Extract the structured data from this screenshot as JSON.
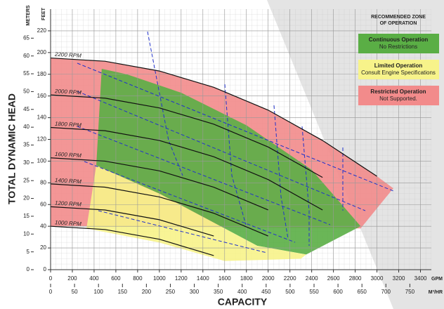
{
  "chart_data": {
    "type": "line",
    "y_label": "TOTAL DYNAMIC HEAD",
    "y_unit": "FEET",
    "y2_unit": "METERS",
    "x_label": "CAPACITY",
    "x_unit": "GPM",
    "x2_unit": "M³/HR",
    "legend_title": [
      "RECOMMENDED ZONE",
      "OF OPERATION"
    ],
    "xlim": [
      0,
      3500
    ],
    "xticks": [
      0,
      200,
      400,
      600,
      800,
      1000,
      1200,
      1400,
      1600,
      1800,
      2000,
      2200,
      2400,
      2600,
      2800,
      3000,
      3200,
      3400
    ],
    "x2lim": [
      0,
      794.9
    ],
    "x2ticks": [
      0,
      50,
      100,
      150,
      200,
      250,
      300,
      350,
      400,
      450,
      500,
      550,
      600,
      650,
      700,
      750
    ],
    "ylim": [
      0,
      240
    ],
    "yticks": [
      0,
      20,
      40,
      60,
      80,
      100,
      120,
      140,
      160,
      180,
      200,
      220
    ],
    "y2lim": [
      0,
      73.15
    ],
    "y2ticks": [
      0,
      5,
      10,
      15,
      20,
      25,
      30,
      35,
      40,
      45,
      50,
      55,
      60,
      65
    ],
    "grid": true,
    "x": [
      0,
      500,
      1000,
      1500,
      2000,
      2500,
      3000
    ],
    "series": [
      {
        "name": "2200 RPM",
        "color": "#111111",
        "values": [
          195,
          192,
          183,
          168,
          147,
          119,
          86
        ]
      },
      {
        "name": "2000 RPM",
        "color": "#111111",
        "values": [
          161,
          158,
          149,
          134,
          113,
          85,
          null
        ]
      },
      {
        "name": "1800 RPM",
        "color": "#111111",
        "values": [
          131,
          128,
          119,
          104,
          83,
          55,
          null
        ]
      },
      {
        "name": "1600 RPM",
        "color": "#111111",
        "values": [
          103,
          100,
          91,
          76,
          55,
          null,
          null
        ]
      },
      {
        "name": "1400 RPM",
        "color": "#111111",
        "values": [
          79,
          76,
          67,
          52,
          31,
          null,
          null
        ]
      },
      {
        "name": "1200 RPM",
        "color": "#111111",
        "values": [
          58,
          55,
          46,
          31,
          null,
          null,
          null
        ]
      },
      {
        "name": "1000 RPM",
        "color": "#111111",
        "values": [
          40,
          37,
          28,
          13,
          null,
          null,
          null
        ]
      }
    ],
    "zones": [
      {
        "name": "Restricted Operation",
        "description": "Not Supported.",
        "color": "#f28b8b",
        "x": [
          0,
          500,
          1000,
          1500,
          2000,
          2500,
          3000,
          3150,
          2850,
          0
        ],
        "y": [
          195,
          192,
          183,
          168,
          147,
          119,
          86,
          75,
          38,
          40
        ]
      },
      {
        "name": "Continuous Operation",
        "description": "No Restrictions",
        "color": "#5aae45",
        "x": [
          470,
          700,
          1200,
          1800,
          2400,
          2850,
          2350,
          1900,
          1000,
          420
        ],
        "y": [
          185,
          180,
          163,
          133,
          92,
          40,
          14,
          22,
          70,
          96
        ]
      },
      {
        "name": "Limited Operation",
        "description": "Consult Engine Specifications",
        "color": "#f7f38a",
        "x": [
          420,
          1000,
          1900,
          2350,
          2300,
          1600,
          1000,
          330
        ],
        "y": [
          96,
          70,
          22,
          14,
          10,
          8,
          25,
          38
        ]
      }
    ]
  }
}
